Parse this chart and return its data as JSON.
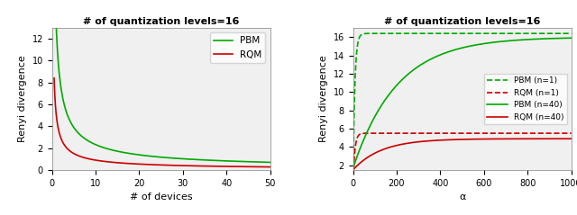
{
  "left": {
    "title": "# of quantization levels=16",
    "xlabel": "# of devices",
    "ylabel": "Renyi divergence",
    "xlim": [
      0,
      50
    ],
    "ylim": [
      0,
      13
    ],
    "yticks": [
      0,
      2,
      4,
      6,
      8,
      10,
      12
    ],
    "xticks": [
      0,
      10,
      20,
      30,
      40,
      50
    ],
    "pbm_color": "#00aa00",
    "rqm_color": "#cc0000",
    "legend": [
      "PBM",
      "RQM"
    ]
  },
  "right": {
    "title": "# of quantization levels=16",
    "xlabel": "α",
    "ylabel": "Renyi divergence",
    "xlim": [
      0,
      1000
    ],
    "ylim": [
      1.5,
      17
    ],
    "yticks": [
      2,
      4,
      6,
      8,
      10,
      12,
      14,
      16
    ],
    "xticks": [
      0,
      200,
      400,
      600,
      800,
      1000
    ],
    "pbm_n1_color": "#00aa00",
    "rqm_n1_color": "#cc0000",
    "pbm_n40_color": "#00aa00",
    "rqm_n40_color": "#cc0000",
    "legend": [
      "PBM (n=1)",
      "RQM (n=1)",
      "PBM (n=40)",
      "RQM (n=40)"
    ]
  }
}
